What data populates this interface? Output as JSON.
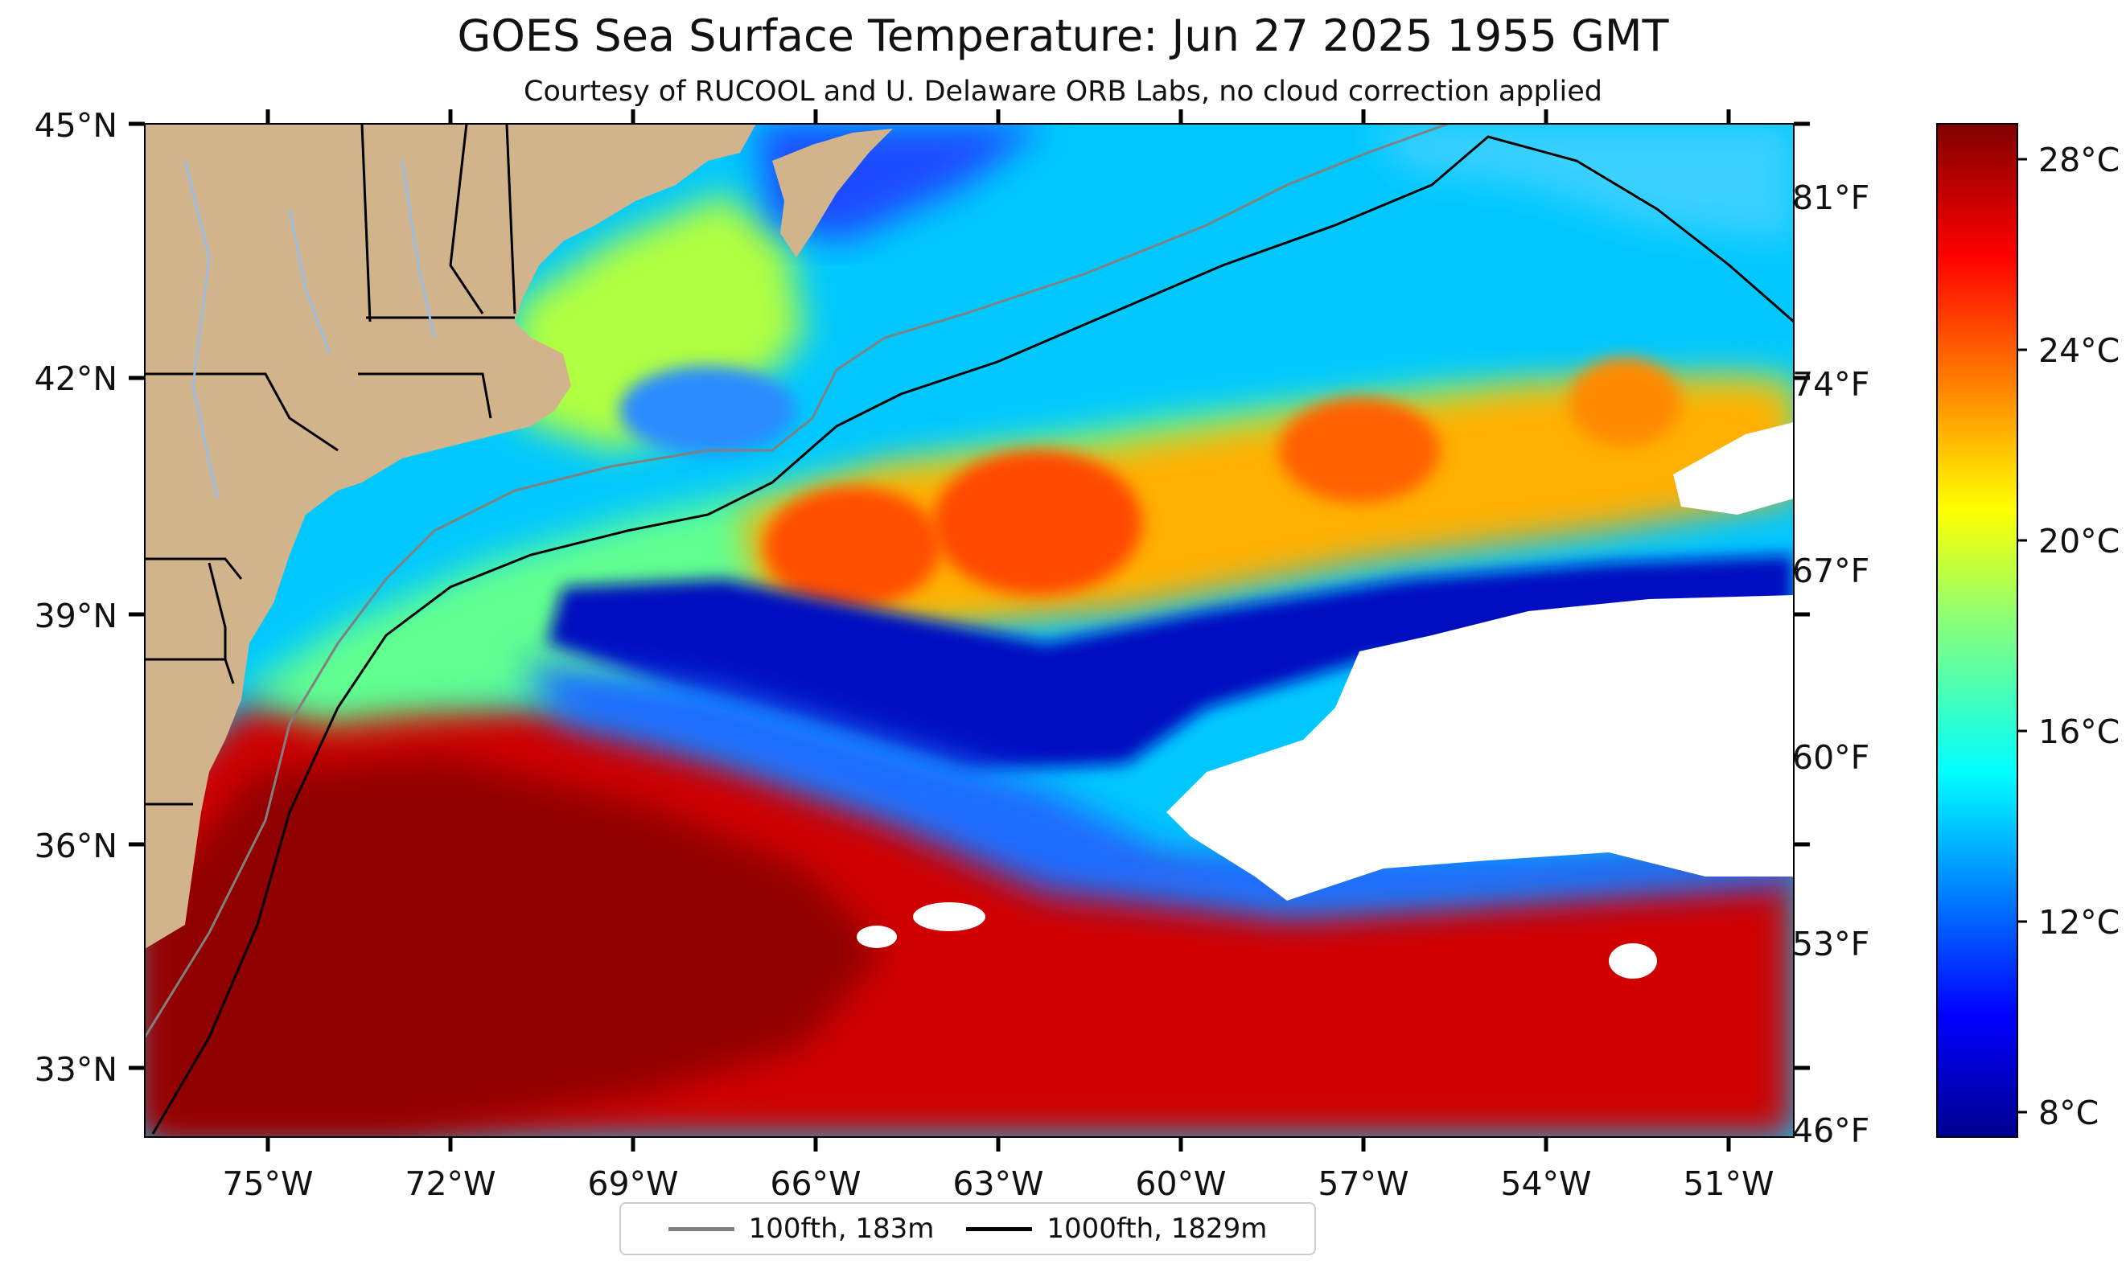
{
  "title": "GOES Sea Surface Temperature: Jun 27 2025 1955 GMT",
  "subtitle": "Courtesy of RUCOOL and U. Delaware ORB Labs, no cloud correction applied",
  "lat_ticks": [
    "45°N",
    "42°N",
    "39°N",
    "36°N",
    "33°N"
  ],
  "lon_ticks": [
    "75°W",
    "72°W",
    "69°W",
    "66°W",
    "63°W",
    "60°W",
    "57°W",
    "54°W",
    "51°W"
  ],
  "fahrenheit_ticks": [
    "81°F",
    "74°F",
    "67°F",
    "60°F",
    "53°F",
    "46°F"
  ],
  "colorbar": {
    "celsius_ticks": [
      "28°C",
      "24°C",
      "20°C",
      "16°C",
      "12°C",
      "8°C"
    ],
    "range_c": [
      7.5,
      28.8
    ],
    "colormap": "jet"
  },
  "legend": [
    {
      "label": "100fth, 183m",
      "color": "#808080"
    },
    {
      "label": "1000fth, 1829m",
      "color": "#000000"
    }
  ],
  "colors": {
    "land": "#d2b48c",
    "no_data": "#ffffff",
    "state_borders": "#000000",
    "rivers": "#a6bddb"
  }
}
